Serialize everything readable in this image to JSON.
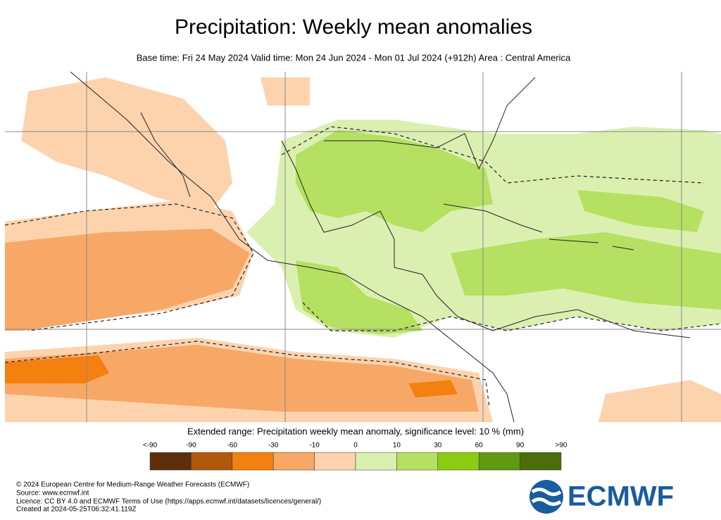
{
  "header": {
    "title": "Precipitation: Weekly mean anomalies",
    "subtitle": "Base time: Fri 24 May 2024 Valid time: Mon 24 Jun 2024 - Mon 01 Jul 2024 (+912h) Area : Central America"
  },
  "legend": {
    "title": "Extended range: Precipitation weekly mean anomaly, significance level: 10 % (mm)",
    "ticks": [
      "<-90",
      "-90",
      "-60",
      "-30",
      "-10",
      "0",
      "10",
      "30",
      "60",
      "90",
      ">90"
    ],
    "colors": [
      "#5c2f0a",
      "#b0580c",
      "#f3800f",
      "#f8a866",
      "#fdd3ae",
      "#dbf0b0",
      "#b5e062",
      "#8acb14",
      "#5f9a12",
      "#4b6e0b"
    ]
  },
  "footer": {
    "lines": [
      "© 2024 European Centre for Medium-Range Weather Forecasts (ECMWF)",
      "Source: www.ecmwf.int",
      "Licence: CC BY 4.0 and ECMWF Terms of Use (https://apps.ecmwf.int/datasets/licences/general/)",
      "Created at 2024-05-25T06:32:41.119Z"
    ],
    "logo": "ECMWF"
  }
}
